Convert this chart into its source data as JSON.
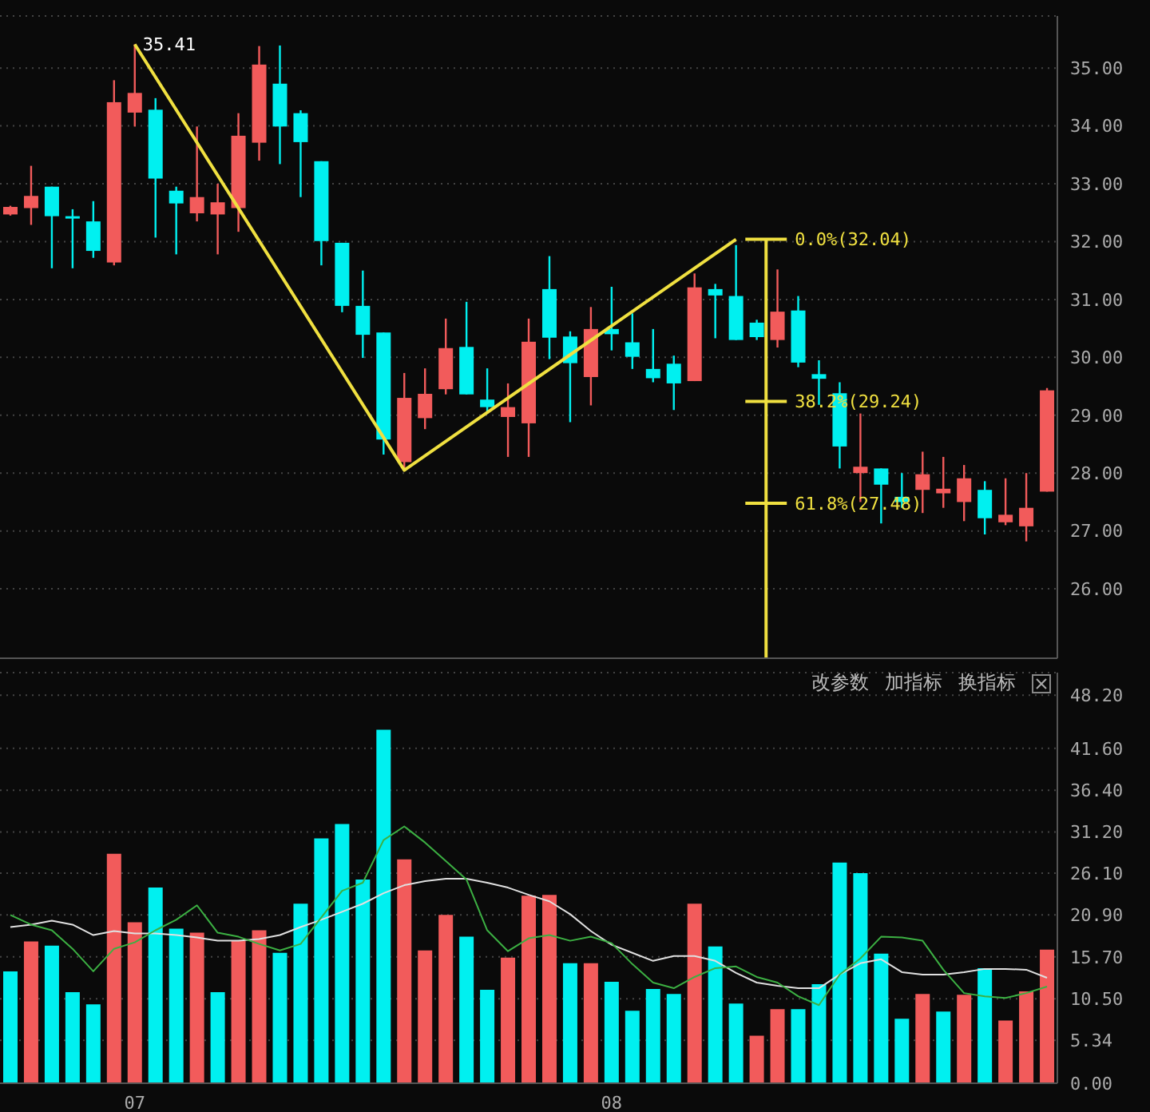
{
  "chart_data": [
    {
      "type": "candlestick",
      "categories": [
        null,
        null,
        null,
        null,
        null,
        null,
        "07",
        null,
        null,
        null,
        null,
        null,
        null,
        null,
        null,
        null,
        null,
        null,
        null,
        null,
        null,
        null,
        null,
        null,
        null,
        null,
        null,
        null,
        null,
        "08",
        null,
        null,
        null,
        null,
        null,
        null,
        null,
        null,
        null,
        null,
        null,
        null,
        null,
        null,
        null,
        null,
        null,
        null,
        null,
        null,
        null
      ],
      "series": [
        {
          "type": "candlestick",
          "ohlc": [
            [
              32.47,
              32.62,
              32.45,
              32.6
            ],
            [
              32.58,
              33.31,
              32.29,
              32.79
            ],
            [
              32.95,
              32.95,
              31.54,
              32.44
            ],
            [
              32.44,
              32.56,
              31.54,
              32.42
            ],
            [
              32.35,
              32.7,
              31.72,
              31.84
            ],
            [
              31.64,
              34.79,
              31.59,
              34.41
            ],
            [
              34.23,
              35.41,
              33.99,
              34.57
            ],
            [
              34.28,
              34.48,
              32.07,
              33.09
            ],
            [
              32.88,
              32.95,
              31.78,
              32.66
            ],
            [
              32.49,
              33.99,
              32.35,
              32.77
            ],
            [
              32.47,
              33.0,
              31.78,
              32.68
            ],
            [
              32.58,
              34.22,
              32.17,
              33.83
            ],
            [
              33.71,
              35.38,
              33.4,
              35.06
            ],
            [
              34.73,
              35.39,
              33.34,
              33.99
            ],
            [
              34.22,
              34.27,
              32.77,
              33.72
            ],
            [
              33.39,
              33.39,
              31.59,
              32.01
            ],
            [
              31.98,
              31.98,
              30.78,
              30.89
            ],
            [
              30.89,
              31.5,
              29.99,
              30.39
            ],
            [
              30.43,
              30.43,
              28.32,
              28.58
            ],
            [
              28.19,
              29.73,
              28.05,
              29.3
            ],
            [
              28.95,
              29.81,
              28.76,
              29.37
            ],
            [
              29.45,
              30.67,
              29.36,
              30.16
            ],
            [
              30.18,
              30.96,
              29.36,
              29.36
            ],
            [
              29.27,
              29.81,
              29.05,
              29.14
            ],
            [
              28.97,
              29.55,
              28.28,
              29.14
            ],
            [
              28.86,
              30.67,
              28.28,
              30.27
            ],
            [
              31.18,
              31.75,
              29.97,
              30.34
            ],
            [
              30.36,
              30.45,
              28.88,
              29.9
            ],
            [
              29.66,
              30.87,
              29.17,
              30.49
            ],
            [
              30.49,
              31.22,
              30.12,
              30.4
            ],
            [
              30.26,
              30.76,
              29.8,
              30.01
            ],
            [
              29.8,
              30.49,
              29.57,
              29.64
            ],
            [
              29.89,
              30.03,
              29.09,
              29.55
            ],
            [
              29.59,
              31.45,
              29.59,
              31.21
            ],
            [
              31.18,
              31.27,
              30.33,
              31.07
            ],
            [
              31.06,
              31.94,
              30.3,
              30.3
            ],
            [
              30.6,
              30.65,
              30.3,
              30.35
            ],
            [
              30.3,
              31.52,
              30.17,
              30.79
            ],
            [
              30.81,
              31.06,
              29.83,
              29.91
            ],
            [
              29.71,
              29.95,
              29.18,
              29.63
            ],
            [
              29.38,
              29.57,
              28.08,
              28.46
            ],
            [
              28.0,
              29.03,
              27.5,
              28.11
            ],
            [
              28.08,
              28.08,
              27.13,
              27.8
            ],
            [
              27.59,
              28.0,
              27.4,
              27.5
            ],
            [
              27.71,
              28.37,
              27.31,
              27.98
            ],
            [
              27.65,
              28.28,
              27.4,
              27.73
            ],
            [
              27.5,
              28.14,
              27.17,
              27.91
            ],
            [
              27.71,
              27.86,
              26.94,
              27.22
            ],
            [
              27.15,
              27.91,
              27.1,
              27.28
            ],
            [
              27.08,
              28.0,
              26.82,
              27.4
            ],
            [
              27.68,
              29.47,
              27.68,
              29.43
            ]
          ],
          "colors": [
            "#f25b5b",
            "#f25b5b",
            "#00f0f0",
            "#00f0f0",
            "#00f0f0",
            "#f25b5b",
            "#f25b5b",
            "#00f0f0",
            "#00f0f0",
            "#f25b5b",
            "#f25b5b",
            "#f25b5b",
            "#f25b5b",
            "#00f0f0",
            "#00f0f0",
            "#00f0f0",
            "#00f0f0",
            "#00f0f0",
            "#00f0f0",
            "#f25b5b",
            "#f25b5b",
            "#f25b5b",
            "#00f0f0",
            "#00f0f0",
            "#f25b5b",
            "#f25b5b",
            "#00f0f0",
            "#00f0f0",
            "#f25b5b",
            "#00f0f0",
            "#00f0f0",
            "#00f0f0",
            "#00f0f0",
            "#f25b5b",
            "#00f0f0",
            "#00f0f0",
            "#00f0f0",
            "#f25b5b",
            "#00f0f0",
            "#00f0f0",
            "#00f0f0",
            "#f25b5b",
            "#00f0f0",
            "#00f0f0",
            "#f25b5b",
            "#f25b5b",
            "#f25b5b",
            "#00f0f0",
            "#f25b5b",
            "#f25b5b",
            "#f25b5b"
          ]
        },
        {
          "type": "line",
          "color": "#f0e040",
          "values": [
            null,
            null,
            null,
            null,
            null,
            null,
            35.41,
            null,
            null,
            null,
            null,
            null,
            null,
            null,
            null,
            null,
            null,
            null,
            null,
            28.05,
            null,
            null,
            null,
            null,
            null,
            null,
            null,
            null,
            null,
            null,
            null,
            null,
            null,
            null,
            null,
            32.04,
            null,
            null,
            null,
            null,
            null,
            null,
            null,
            null,
            null,
            null,
            null,
            null,
            null,
            null,
            null
          ]
        }
      ],
      "ylim": [
        24.8,
        35.9
      ],
      "yticks": [
        {
          "value": 26,
          "label": "26.00"
        },
        {
          "value": 27,
          "label": "27.00"
        },
        {
          "value": 28,
          "label": "28.00"
        },
        {
          "value": 29,
          "label": "29.00"
        },
        {
          "value": 30,
          "label": "30.00"
        },
        {
          "value": 31,
          "label": "31.00"
        },
        {
          "value": 32,
          "label": "32.00"
        },
        {
          "value": 33,
          "label": "33.00"
        },
        {
          "value": 34,
          "label": "34.00"
        },
        {
          "value": 35,
          "label": "35.00"
        }
      ],
      "grid": "y",
      "tick_labels": "y",
      "annotations": [
        "35.41"
      ],
      "ref_lines": [
        {
          "axis": "y",
          "value": 32.04,
          "label": "0.0%(32.04)",
          "color": "#f0e040"
        },
        {
          "axis": "y",
          "value": 29.24,
          "label": "38.2%(29.24)",
          "color": "#f0e040"
        },
        {
          "axis": "y",
          "value": 27.48,
          "label": "61.8%(27.48)",
          "color": "#f0e040"
        }
      ]
    },
    {
      "type": "bar",
      "categories": [
        null,
        null,
        null,
        null,
        null,
        null,
        "07",
        null,
        null,
        null,
        null,
        null,
        null,
        null,
        null,
        null,
        null,
        null,
        null,
        null,
        null,
        null,
        null,
        null,
        null,
        null,
        null,
        null,
        null,
        "08",
        null,
        null,
        null,
        null,
        null,
        null,
        null,
        null,
        null,
        null,
        null,
        null,
        null,
        null,
        null,
        null,
        null,
        null,
        null,
        null,
        null
      ],
      "series": [
        {
          "type": "bar",
          "values": [
            13.9,
            17.6,
            17.1,
            11.3,
            9.8,
            28.5,
            20.0,
            24.3,
            19.2,
            18.7,
            11.3,
            17.7,
            19.0,
            16.2,
            22.3,
            30.4,
            32.2,
            25.3,
            43.9,
            27.8,
            16.5,
            20.9,
            18.2,
            11.6,
            15.6,
            23.3,
            23.4,
            14.9,
            14.9,
            12.6,
            9.0,
            11.7,
            11.1,
            22.3,
            17.0,
            9.9,
            5.9,
            9.2,
            9.2,
            12.3,
            27.4,
            26.1,
            16.1,
            8.0,
            11.1,
            8.9,
            11.0,
            14.3,
            7.8,
            11.4,
            16.6
          ],
          "colors": [
            "#00f0f0",
            "#f25b5b",
            "#00f0f0",
            "#00f0f0",
            "#00f0f0",
            "#f25b5b",
            "#f25b5b",
            "#00f0f0",
            "#00f0f0",
            "#f25b5b",
            "#00f0f0",
            "#f25b5b",
            "#f25b5b",
            "#00f0f0",
            "#00f0f0",
            "#00f0f0",
            "#00f0f0",
            "#00f0f0",
            "#00f0f0",
            "#f25b5b",
            "#f25b5b",
            "#f25b5b",
            "#00f0f0",
            "#00f0f0",
            "#f25b5b",
            "#f25b5b",
            "#f25b5b",
            "#00f0f0",
            "#f25b5b",
            "#00f0f0",
            "#00f0f0",
            "#00f0f0",
            "#00f0f0",
            "#f25b5b",
            "#00f0f0",
            "#00f0f0",
            "#f25b5b",
            "#f25b5b",
            "#00f0f0",
            "#00f0f0",
            "#00f0f0",
            "#00f0f0",
            "#00f0f0",
            "#00f0f0",
            "#f25b5b",
            "#00f0f0",
            "#f25b5b",
            "#00f0f0",
            "#f25b5b",
            "#f25b5b",
            "#f25b5b"
          ]
        },
        {
          "type": "line",
          "color": "#e0e0e0",
          "values": [
            19.4,
            19.7,
            20.2,
            19.7,
            18.4,
            18.9,
            18.6,
            18.6,
            18.4,
            18.1,
            17.7,
            17.7,
            17.9,
            18.4,
            19.4,
            20.3,
            21.3,
            22.3,
            23.6,
            24.6,
            25.1,
            25.4,
            25.4,
            24.9,
            24.3,
            23.4,
            22.6,
            21.0,
            18.9,
            17.2,
            16.2,
            15.2,
            15.8,
            15.8,
            15.2,
            13.7,
            12.5,
            12.1,
            11.8,
            11.8,
            13.5,
            14.9,
            15.4,
            13.8,
            13.5,
            13.5,
            13.8,
            14.2,
            14.2,
            14.1,
            13.1
          ]
        },
        {
          "type": "line",
          "color": "#3cb043",
          "values": [
            20.9,
            19.7,
            19.0,
            16.7,
            13.9,
            16.7,
            17.5,
            19.0,
            20.3,
            22.1,
            18.7,
            18.2,
            17.3,
            16.5,
            17.3,
            20.6,
            23.9,
            24.9,
            30.2,
            31.9,
            29.9,
            27.6,
            25.3,
            19.0,
            16.4,
            18.0,
            18.4,
            17.7,
            18.2,
            17.4,
            14.8,
            12.5,
            11.8,
            13.2,
            14.3,
            14.5,
            13.2,
            12.5,
            10.8,
            9.7,
            13.5,
            15.5,
            18.2,
            18.1,
            17.7,
            14.1,
            11.2,
            10.8,
            10.6,
            11.2,
            12.0
          ]
        }
      ],
      "ylim": [
        0,
        51
      ],
      "yticks": [
        {
          "value": 0,
          "label": "0.00"
        },
        {
          "value": 5.34,
          "label": "5.34"
        },
        {
          "value": 10.5,
          "label": "10.50"
        },
        {
          "value": 15.7,
          "label": "15.70"
        },
        {
          "value": 20.9,
          "label": "20.90"
        },
        {
          "value": 26.1,
          "label": "26.10"
        },
        {
          "value": 31.2,
          "label": "31.20"
        },
        {
          "value": 36.4,
          "label": "36.40"
        },
        {
          "value": 41.6,
          "label": "41.60"
        },
        {
          "value": 48.2,
          "label": "48.20"
        }
      ],
      "grid": "y",
      "annotations": [
        "改参数",
        "加指标",
        "换指标"
      ]
    }
  ]
}
